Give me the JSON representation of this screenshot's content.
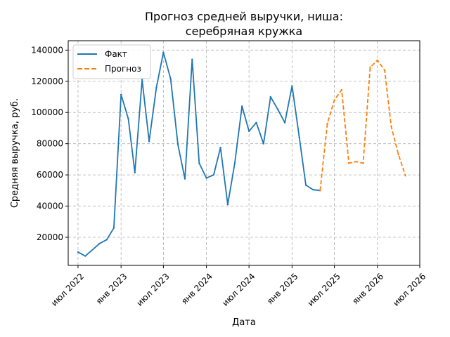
{
  "chart_data": {
    "type": "line",
    "title_lines": [
      "Прогноз средней выручки, ниша:",
      "серебряная кружка"
    ],
    "xlabel": "Дата",
    "ylabel": "Средняя выручка, руб.",
    "x_range": [
      "2022-05-20",
      "2026-07-01"
    ],
    "ylim": [
      2000,
      146000
    ],
    "grid": true,
    "legend_position": "top-left",
    "x_ticks": [
      {
        "date": "2022-07-01",
        "label": "июл 2022"
      },
      {
        "date": "2023-01-01",
        "label": "янв 2023"
      },
      {
        "date": "2023-07-01",
        "label": "июл 2023"
      },
      {
        "date": "2024-01-01",
        "label": "янв 2024"
      },
      {
        "date": "2024-07-01",
        "label": "июл 2024"
      },
      {
        "date": "2025-01-01",
        "label": "янв 2025"
      },
      {
        "date": "2025-07-01",
        "label": "июл 2025"
      },
      {
        "date": "2026-01-01",
        "label": "янв 2026"
      },
      {
        "date": "2026-07-01",
        "label": "июл 2026"
      }
    ],
    "y_ticks": [
      {
        "value": 20000,
        "label": "20000"
      },
      {
        "value": 40000,
        "label": "40000"
      },
      {
        "value": 60000,
        "label": "60000"
      },
      {
        "value": 80000,
        "label": "80000"
      },
      {
        "value": 100000,
        "label": "100000"
      },
      {
        "value": 120000,
        "label": "120000"
      },
      {
        "value": 140000,
        "label": "140000"
      }
    ],
    "series": [
      {
        "name": "Факт",
        "color": "#1f77b4",
        "style": "solid",
        "x": [
          "2022-07-01",
          "2022-08-01",
          "2022-10-01",
          "2022-11-01",
          "2022-12-01",
          "2023-01-01",
          "2023-02-01",
          "2023-03-01",
          "2023-04-01",
          "2023-05-01",
          "2023-06-01",
          "2023-07-01",
          "2023-08-01",
          "2023-09-01",
          "2023-10-01",
          "2023-11-01",
          "2023-12-01",
          "2024-01-01",
          "2024-02-01",
          "2024-03-01",
          "2024-04-01",
          "2024-05-01",
          "2024-06-01",
          "2024-07-01",
          "2024-08-01",
          "2024-09-01",
          "2024-10-01",
          "2024-11-01",
          "2024-12-01",
          "2025-01-01",
          "2025-02-01",
          "2025-03-01",
          "2025-04-01",
          "2025-05-01"
        ],
        "y": [
          10500,
          8000,
          16000,
          18500,
          26000,
          111500,
          96000,
          61500,
          121000,
          81500,
          116000,
          138500,
          121500,
          79500,
          57500,
          134000,
          67500,
          58000,
          60000,
          77500,
          41000,
          67500,
          104000,
          88000,
          93500,
          80000,
          110000,
          102000,
          93500,
          117000,
          84000,
          53500,
          50500,
          50000
        ]
      },
      {
        "name": "Прогноз",
        "color": "#ff7f0e",
        "style": "dashed",
        "x": [
          "2025-05-01",
          "2025-06-01",
          "2025-07-01",
          "2025-08-01",
          "2025-09-01",
          "2025-10-01",
          "2025-11-01",
          "2025-12-01",
          "2026-01-01",
          "2026-02-01",
          "2026-03-01",
          "2026-04-01",
          "2026-05-01"
        ],
        "y": [
          50000,
          93000,
          108000,
          114500,
          67500,
          68500,
          67500,
          129000,
          133500,
          127000,
          91000,
          73000,
          59500
        ]
      }
    ]
  }
}
